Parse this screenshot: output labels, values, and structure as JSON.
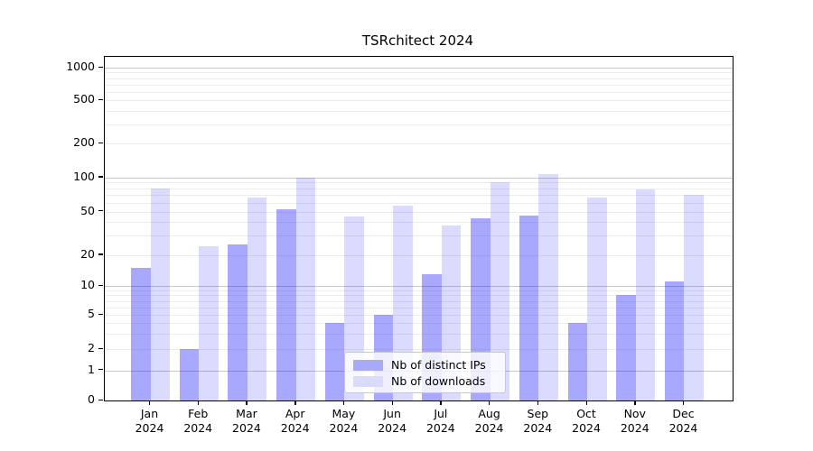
{
  "chart_data": {
    "type": "bar",
    "title": "TSRchitect 2024",
    "categories": [
      "Jan",
      "Feb",
      "Mar",
      "Apr",
      "May",
      "Jun",
      "Jul",
      "Aug",
      "Sep",
      "Oct",
      "Nov",
      "Dec"
    ],
    "year_label": "2024",
    "series": [
      {
        "name": "Nb of distinct IPs",
        "color": "#a9a9fa",
        "fill_rgba": "rgba(0,0,255,0.34)",
        "values": [
          15,
          2,
          25,
          52,
          4,
          5,
          13,
          43,
          46,
          4,
          8,
          11
        ]
      },
      {
        "name": "Nb of downloads",
        "color": "#dadafb",
        "fill_rgba": "rgba(0,0,255,0.14)",
        "values": [
          80,
          24,
          66,
          100,
          45,
          56,
          37,
          90,
          107,
          66,
          78,
          70
        ]
      }
    ],
    "yticks": [
      0,
      1,
      2,
      5,
      10,
      20,
      50,
      100,
      200,
      500,
      1000
    ],
    "ylabel": "",
    "xlabel": "",
    "yscale": "symlog-like",
    "ylim": [
      0,
      1200
    ],
    "grid": true,
    "major_grid_values": [
      1,
      10,
      100,
      1000
    ],
    "minor_grid_values": [
      2,
      3,
      4,
      5,
      6,
      7,
      8,
      9,
      20,
      30,
      40,
      50,
      60,
      70,
      80,
      90,
      200,
      300,
      400,
      500,
      600,
      700,
      800,
      900
    ],
    "legend": {
      "position": "inside-lower-center",
      "entries": [
        "Nb of distinct IPs",
        "Nb of downloads"
      ]
    },
    "colors": {
      "background": "#ffffff",
      "axis": "#000000",
      "major_grid": "#c9c9c9",
      "minor_grid": "#ededed",
      "text": "#000000"
    }
  }
}
